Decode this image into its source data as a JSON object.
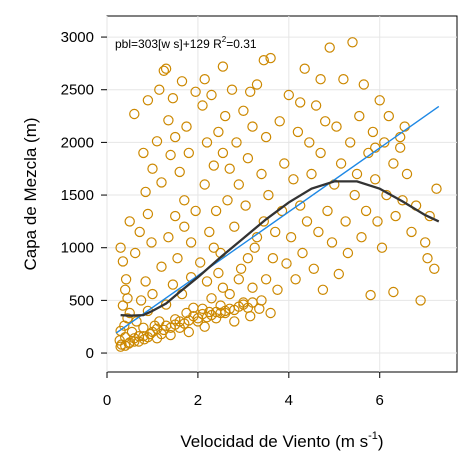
{
  "chart_data": {
    "type": "scatter",
    "xlabel_main": "Velocidad de Viento (m s",
    "xlabel_sup": "-1",
    "xlabel_tail": ")",
    "ylabel": "Capa de Mezcla (m)",
    "xlim": [
      0,
      7.7
    ],
    "ylim": [
      -180,
      3200
    ],
    "x_ticks": [
      0,
      2,
      4,
      6
    ],
    "y_ticks": [
      0,
      500,
      1000,
      1500,
      2000,
      2500,
      3000
    ],
    "grid": true,
    "annotation": {
      "text_pre": "pbl=303[w s]+129 R",
      "text_sup": "2",
      "text_post": "=0.31"
    },
    "point_color": "#CC8800",
    "fit_line_color": "#1E88E5",
    "smooth_line_color": "#333333",
    "regression": {
      "slope": 303,
      "intercept": 129,
      "x_range": [
        0.2,
        7.3
      ]
    },
    "smooth_curve": {
      "x": [
        0.3,
        0.5,
        0.8,
        1.0,
        1.3,
        1.6,
        2.0,
        2.5,
        3.0,
        3.5,
        4.0,
        4.5,
        5.0,
        5.5,
        6.0,
        6.5,
        7.0,
        7.3
      ],
      "y": [
        360,
        355,
        360,
        400,
        470,
        580,
        720,
        910,
        1090,
        1270,
        1430,
        1560,
        1630,
        1630,
        1560,
        1440,
        1310,
        1250
      ]
    },
    "points": [
      [
        0.28,
        120
      ],
      [
        0.3,
        210
      ],
      [
        0.32,
        80
      ],
      [
        0.35,
        450
      ],
      [
        0.38,
        260
      ],
      [
        0.4,
        150
      ],
      [
        0.42,
        700
      ],
      [
        0.45,
        330
      ],
      [
        0.48,
        90
      ],
      [
        0.5,
        1250
      ],
      [
        0.3,
        1000
      ],
      [
        0.35,
        870
      ],
      [
        0.4,
        600
      ],
      [
        0.45,
        520
      ],
      [
        0.5,
        380
      ],
      [
        0.55,
        200
      ],
      [
        0.6,
        110
      ],
      [
        0.62,
        950
      ],
      [
        0.65,
        300
      ],
      [
        0.7,
        160
      ],
      [
        0.72,
        1150
      ],
      [
        0.75,
        500
      ],
      [
        0.8,
        240
      ],
      [
        0.82,
        130
      ],
      [
        0.85,
        680
      ],
      [
        0.9,
        400
      ],
      [
        0.95,
        180
      ],
      [
        0.98,
        1050
      ],
      [
        1.0,
        560
      ],
      [
        1.05,
        260
      ],
      [
        0.6,
        2270
      ],
      [
        0.8,
        1900
      ],
      [
        0.85,
        1530
      ],
      [
        0.9,
        1320
      ],
      [
        1.0,
        1750
      ],
      [
        1.1,
        2010
      ],
      [
        1.15,
        2500
      ],
      [
        1.2,
        1620
      ],
      [
        1.3,
        2700
      ],
      [
        1.35,
        2210
      ],
      [
        1.4,
        1880
      ],
      [
        1.45,
        2420
      ],
      [
        1.5,
        1300
      ],
      [
        1.5,
        2050
      ],
      [
        1.6,
        1720
      ],
      [
        1.65,
        2580
      ],
      [
        1.7,
        1450
      ],
      [
        1.75,
        2150
      ],
      [
        1.8,
        1900
      ],
      [
        1.85,
        1050
      ],
      [
        1.1,
        140
      ],
      [
        1.15,
        300
      ],
      [
        1.2,
        820
      ],
      [
        1.25,
        220
      ],
      [
        1.3,
        460
      ],
      [
        1.35,
        1100
      ],
      [
        1.4,
        170
      ],
      [
        1.45,
        650
      ],
      [
        1.5,
        320
      ],
      [
        1.55,
        900
      ],
      [
        1.6,
        240
      ],
      [
        1.65,
        560
      ],
      [
        1.7,
        1200
      ],
      [
        1.75,
        380
      ],
      [
        1.8,
        200
      ],
      [
        1.85,
        720
      ],
      [
        1.9,
        430
      ],
      [
        1.95,
        1350
      ],
      [
        2.0,
        300
      ],
      [
        2.05,
        860
      ],
      [
        2.1,
        2350
      ],
      [
        2.15,
        1600
      ],
      [
        2.2,
        2000
      ],
      [
        2.25,
        1150
      ],
      [
        2.3,
        2450
      ],
      [
        2.35,
        1780
      ],
      [
        2.4,
        1350
      ],
      [
        2.45,
        2100
      ],
      [
        2.5,
        950
      ],
      [
        2.55,
        1900
      ],
      [
        2.1,
        420
      ],
      [
        2.15,
        250
      ],
      [
        2.2,
        680
      ],
      [
        2.25,
        390
      ],
      [
        2.3,
        520
      ],
      [
        2.35,
        1000
      ],
      [
        2.4,
        330
      ],
      [
        2.45,
        760
      ],
      [
        2.5,
        450
      ],
      [
        2.55,
        620
      ],
      [
        2.6,
        2250
      ],
      [
        2.65,
        1450
      ],
      [
        2.7,
        1750
      ],
      [
        2.75,
        2500
      ],
      [
        2.8,
        1200
      ],
      [
        2.85,
        2000
      ],
      [
        2.9,
        1600
      ],
      [
        2.95,
        800
      ],
      [
        3.0,
        2300
      ],
      [
        3.05,
        1400
      ],
      [
        2.6,
        380
      ],
      [
        2.7,
        560
      ],
      [
        2.8,
        300
      ],
      [
        2.9,
        700
      ],
      [
        3.0,
        480
      ],
      [
        3.1,
        900
      ],
      [
        3.15,
        350
      ],
      [
        3.2,
        620
      ],
      [
        3.3,
        1100
      ],
      [
        3.35,
        420
      ],
      [
        3.1,
        1850
      ],
      [
        3.2,
        2150
      ],
      [
        3.25,
        1000
      ],
      [
        3.3,
        2550
      ],
      [
        3.4,
        1700
      ],
      [
        3.45,
        1250
      ],
      [
        3.5,
        2050
      ],
      [
        3.55,
        1500
      ],
      [
        3.6,
        2800
      ],
      [
        3.65,
        900
      ],
      [
        3.4,
        500
      ],
      [
        3.5,
        700
      ],
      [
        3.6,
        380
      ],
      [
        3.7,
        1150
      ],
      [
        3.75,
        600
      ],
      [
        3.8,
        2200
      ],
      [
        3.85,
        1350
      ],
      [
        3.9,
        1800
      ],
      [
        3.95,
        850
      ],
      [
        4.0,
        2450
      ],
      [
        4.05,
        1100
      ],
      [
        4.1,
        1650
      ],
      [
        4.15,
        700
      ],
      [
        4.2,
        2100
      ],
      [
        4.25,
        1400
      ],
      [
        4.3,
        950
      ],
      [
        4.35,
        2700
      ],
      [
        4.4,
        1250
      ],
      [
        4.45,
        2000
      ],
      [
        4.5,
        1700
      ],
      [
        4.55,
        800
      ],
      [
        4.6,
        2350
      ],
      [
        4.65,
        1150
      ],
      [
        4.7,
        1900
      ],
      [
        4.75,
        600
      ],
      [
        4.8,
        2200
      ],
      [
        4.85,
        1350
      ],
      [
        4.9,
        2900
      ],
      [
        4.95,
        1050
      ],
      [
        5.0,
        1600
      ],
      [
        5.05,
        2150
      ],
      [
        5.1,
        750
      ],
      [
        5.15,
        1800
      ],
      [
        5.2,
        2600
      ],
      [
        5.25,
        1250
      ],
      [
        5.3,
        950
      ],
      [
        5.35,
        2000
      ],
      [
        5.4,
        2950
      ],
      [
        5.45,
        1500
      ],
      [
        5.5,
        1700
      ],
      [
        5.55,
        2250
      ],
      [
        5.6,
        1100
      ],
      [
        5.65,
        2550
      ],
      [
        5.7,
        1350
      ],
      [
        5.75,
        1900
      ],
      [
        5.8,
        550
      ],
      [
        5.85,
        2100
      ],
      [
        5.9,
        1650
      ],
      [
        5.95,
        1250
      ],
      [
        6.0,
        2400
      ],
      [
        6.05,
        1000
      ],
      [
        6.1,
        2000
      ],
      [
        6.15,
        1500
      ],
      [
        6.2,
        2250
      ],
      [
        6.3,
        1800
      ],
      [
        6.35,
        1300
      ],
      [
        6.45,
        2050
      ],
      [
        6.5,
        1450
      ],
      [
        6.6,
        1700
      ],
      [
        6.7,
        1150
      ],
      [
        6.3,
        580
      ],
      [
        6.45,
        1950
      ],
      [
        6.9,
        500
      ],
      [
        7.0,
        1050
      ],
      [
        7.05,
        900
      ],
      [
        7.1,
        1300
      ],
      [
        7.2,
        800
      ],
      [
        7.25,
        1560
      ],
      [
        6.8,
        1400
      ],
      [
        6.55,
        2150
      ],
      [
        0.9,
        2400
      ],
      [
        1.25,
        2680
      ],
      [
        2.55,
        2720
      ],
      [
        3.15,
        2480
      ],
      [
        4.7,
        2600
      ],
      [
        3.45,
        2780
      ],
      [
        5.9,
        1950
      ],
      [
        4.25,
        2380
      ],
      [
        2.15,
        2600
      ],
      [
        1.95,
        2480
      ],
      [
        0.3,
        60
      ],
      [
        0.4,
        70
      ],
      [
        0.5,
        100
      ],
      [
        0.6,
        140
      ],
      [
        0.7,
        110
      ],
      [
        0.8,
        160
      ],
      [
        0.9,
        150
      ],
      [
        1.0,
        200
      ],
      [
        1.1,
        230
      ],
      [
        1.2,
        180
      ],
      [
        1.3,
        260
      ],
      [
        1.4,
        240
      ],
      [
        1.5,
        270
      ],
      [
        1.6,
        300
      ],
      [
        1.7,
        280
      ],
      [
        1.8,
        310
      ],
      [
        1.9,
        350
      ],
      [
        2.0,
        330
      ],
      [
        2.1,
        370
      ],
      [
        2.2,
        340
      ],
      [
        2.3,
        360
      ],
      [
        2.4,
        390
      ],
      [
        2.5,
        380
      ],
      [
        2.6,
        400
      ],
      [
        2.7,
        420
      ],
      [
        2.8,
        410
      ],
      [
        2.9,
        440
      ],
      [
        3.0,
        460
      ],
      [
        3.1,
        430
      ],
      [
        3.2,
        480
      ]
    ]
  }
}
